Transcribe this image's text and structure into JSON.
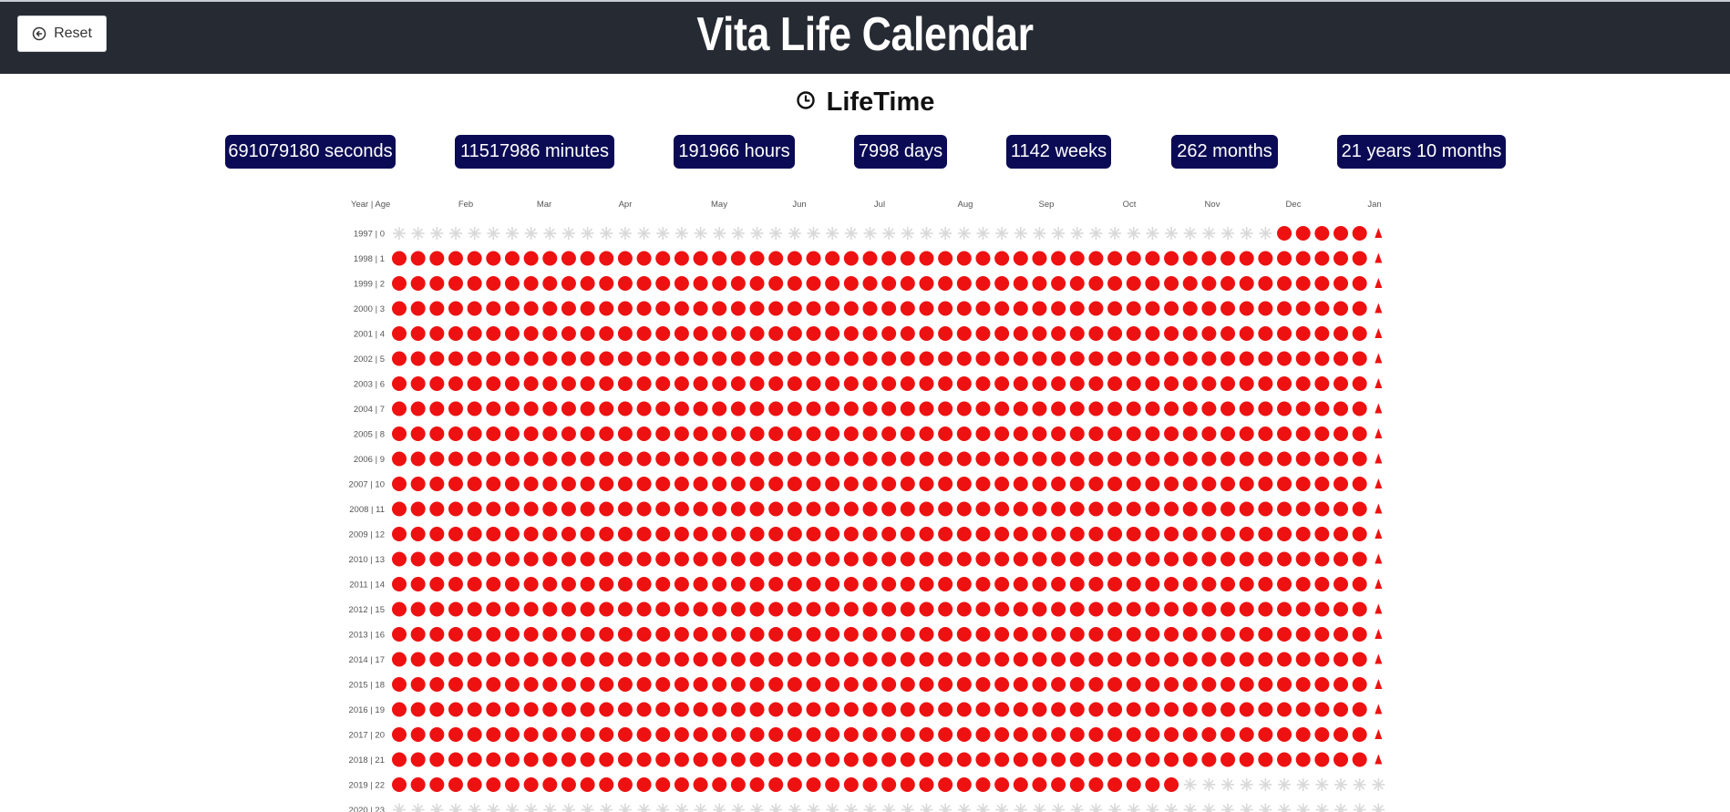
{
  "header": {
    "title": "Vita Life Calendar",
    "reset_label": "Reset",
    "background": "#262a33"
  },
  "section": {
    "title": "LifeTime",
    "icon": "clock-icon"
  },
  "stats": [
    "691079180 seconds",
    "11517986 minutes",
    "191966 hours",
    "7998 days",
    "1142 weeks",
    "262 months",
    "21 years 10 months"
  ],
  "stat_color": "#0b0b55",
  "calendar": {
    "corner_label": "Year | Age",
    "months": [
      "Feb",
      "Mar",
      "Apr",
      "May",
      "Jun",
      "Jul",
      "Aug",
      "Sep",
      "Oct",
      "Nov",
      "Dec",
      "Jan"
    ],
    "rows": [
      {
        "label": "1997 | 0",
        "lived_weeks": 6,
        "start_week": 47
      },
      {
        "label": "1998 | 1",
        "lived_weeks": 53
      },
      {
        "label": "1999 | 2",
        "lived_weeks": 53
      },
      {
        "label": "2000 | 3",
        "lived_weeks": 53
      },
      {
        "label": "2001 | 4",
        "lived_weeks": 53
      },
      {
        "label": "2002 | 5",
        "lived_weeks": 53
      },
      {
        "label": "2003 | 6",
        "lived_weeks": 53
      },
      {
        "label": "2004 | 7",
        "lived_weeks": 53
      },
      {
        "label": "2005 | 8",
        "lived_weeks": 53
      },
      {
        "label": "2006 | 9",
        "lived_weeks": 53
      },
      {
        "label": "2007 | 10",
        "lived_weeks": 53
      },
      {
        "label": "2008 | 11",
        "lived_weeks": 53
      },
      {
        "label": "2009 | 12",
        "lived_weeks": 53
      },
      {
        "label": "2010 | 13",
        "lived_weeks": 53
      },
      {
        "label": "2011 | 14",
        "lived_weeks": 53
      },
      {
        "label": "2012 | 15",
        "lived_weeks": 53
      },
      {
        "label": "2013 | 16",
        "lived_weeks": 53
      },
      {
        "label": "2014 | 17",
        "lived_weeks": 53
      },
      {
        "label": "2015 | 18",
        "lived_weeks": 53
      },
      {
        "label": "2016 | 19",
        "lived_weeks": 53
      },
      {
        "label": "2017 | 20",
        "lived_weeks": 53
      },
      {
        "label": "2018 | 21",
        "lived_weeks": 53
      },
      {
        "label": "2019 | 22",
        "lived_weeks": 42
      },
      {
        "label": "2020 | 23",
        "lived_weeks": 0
      }
    ],
    "weeks_per_row": 53,
    "lived_color": "#ee1111",
    "future_color": "#d9d9d9"
  }
}
